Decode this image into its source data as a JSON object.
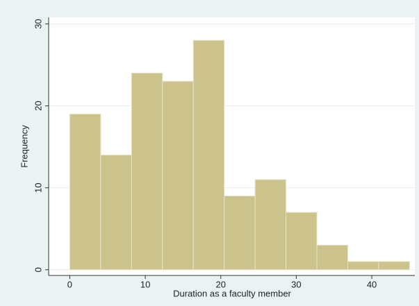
{
  "chart_data": {
    "type": "histogram",
    "x_label": "Duration as a faculty member",
    "y_label": "Frequency",
    "bins": [
      0,
      4.0909,
      8.1818,
      12.2727,
      16.3636,
      20.4545,
      24.5455,
      28.6364,
      32.7273,
      36.8182,
      40.9091,
      45
    ],
    "values": [
      19,
      14,
      24,
      23,
      28,
      9,
      11,
      7,
      3,
      1,
      1
    ],
    "color": "#cbc38b",
    "xlim": [
      -2.8,
      45.7
    ],
    "ylim": [
      -0.7,
      30.8
    ],
    "xticks": [
      0,
      10,
      20,
      30,
      40
    ],
    "yticks": [
      0,
      10,
      20,
      30
    ],
    "grid": true
  }
}
